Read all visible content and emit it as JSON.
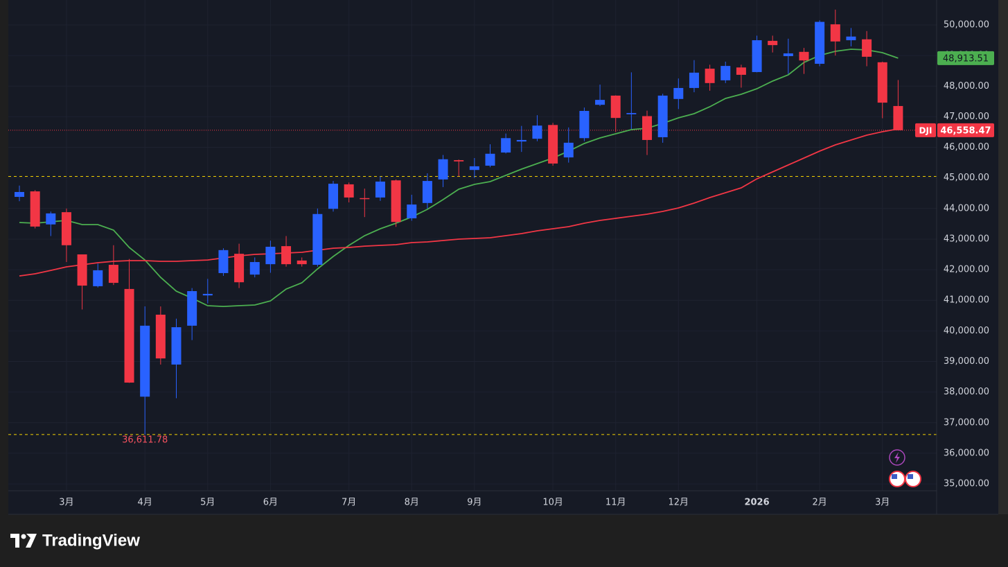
{
  "chart_data": {
    "type": "candlestick",
    "categories": [
      null,
      null,
      null,
      "3月",
      null,
      null,
      null,
      null,
      "4月",
      null,
      null,
      null,
      "5月",
      null,
      null,
      null,
      "6月",
      null,
      null,
      null,
      null,
      "7月",
      null,
      null,
      null,
      "8月",
      null,
      null,
      null,
      "9月",
      null,
      null,
      null,
      null,
      "10月",
      null,
      null,
      null,
      "11月",
      null,
      null,
      null,
      "12月",
      null,
      null,
      null,
      null,
      "2026",
      null,
      null,
      null,
      "2月",
      null,
      null,
      null,
      "3月",
      null
    ],
    "series": [
      {
        "name": "DJI",
        "type": "candlestick",
        "up_color": "#2962ff",
        "down_color": "#f23645",
        "last_value_label": "46,558.47",
        "open": [
          44380,
          44560,
          43480,
          43880,
          42500,
          41460,
          42160,
          41370,
          37850,
          40530,
          38900,
          40170,
          41160,
          41890,
          42520,
          41840,
          42180,
          42770,
          42300,
          42160,
          43990,
          44790,
          44340,
          44360,
          44920,
          43680,
          44180,
          44950,
          45580,
          45260,
          45400,
          45830,
          46190,
          46280,
          46730,
          45670,
          46300,
          47390,
          47690,
          47080,
          47020,
          46330,
          47580,
          47940,
          48570,
          48190,
          48610,
          48460,
          49480,
          48980,
          49120,
          48730,
          50020,
          49500,
          49530,
          48780,
          47350
        ],
        "high": [
          44750,
          44600,
          43900,
          44000,
          42500,
          42200,
          42800,
          42350,
          40800,
          40800,
          40400,
          41400,
          41700,
          42700,
          42850,
          42400,
          42950,
          43100,
          42400,
          44000,
          44900,
          44850,
          44650,
          45050,
          44950,
          44450,
          45150,
          45750,
          45600,
          45650,
          46100,
          46450,
          46700,
          47050,
          46800,
          46650,
          47300,
          48050,
          47700,
          48450,
          47200,
          47750,
          48250,
          48850,
          48700,
          48800,
          48700,
          49650,
          49650,
          49550,
          49250,
          50150,
          50500,
          49900,
          49800,
          48800,
          48200
        ],
        "low": [
          44240,
          43350,
          43100,
          42250,
          40700,
          41420,
          41500,
          38300,
          36611.78,
          38900,
          37800,
          39700,
          40900,
          41800,
          41400,
          41750,
          41900,
          42100,
          42100,
          42100,
          43900,
          44200,
          43720,
          44250,
          43400,
          43600,
          44000,
          44700,
          45050,
          45000,
          45350,
          45800,
          45850,
          46200,
          45400,
          45500,
          46200,
          47350,
          46500,
          46600,
          45750,
          46150,
          47250,
          47800,
          47850,
          48100,
          47950,
          48450,
          49100,
          48400,
          48400,
          48650,
          49000,
          49300,
          48650,
          46950,
          46550
        ],
        "close": [
          44540,
          43410,
          43840,
          42800,
          41480,
          41980,
          41570,
          38310,
          40170,
          39100,
          40120,
          41300,
          41210,
          42640,
          41590,
          42250,
          42750,
          42180,
          42180,
          43820,
          44810,
          44360,
          44320,
          44880,
          43560,
          44130,
          44900,
          45610,
          45540,
          45380,
          45790,
          46300,
          46240,
          46710,
          45470,
          46150,
          47190,
          47550,
          46960,
          47120,
          46240,
          47690,
          47940,
          48440,
          48100,
          48660,
          48370,
          49500,
          49340,
          49070,
          48840,
          50100,
          49460,
          49620,
          48960,
          47460,
          46558.47
        ]
      },
      {
        "type": "line",
        "color": "#4caf50",
        "last_value_label": "48,913.51",
        "values": [
          43542,
          43519,
          43565,
          43610,
          43474,
          43474,
          43293,
          42726,
          42318,
          41751,
          41298,
          41072,
          40823,
          40800,
          40823,
          40846,
          40981,
          41367,
          41571,
          42024,
          42432,
          42794,
          43112,
          43338,
          43519,
          43723,
          43972,
          44290,
          44630,
          44788,
          44879,
          45083,
          45287,
          45468,
          45650,
          45876,
          46125,
          46306,
          46442,
          46578,
          46624,
          46782,
          46964,
          47100,
          47326,
          47598,
          47734,
          47915,
          48165,
          48368,
          48776,
          49003,
          49139,
          49207,
          49184,
          49094,
          48913.51
        ]
      },
      {
        "type": "line",
        "color": "#f23645",
        "values": [
          41797,
          41865,
          41978,
          42092,
          42160,
          42228,
          42273,
          42296,
          42296,
          42273,
          42273,
          42296,
          42318,
          42386,
          42454,
          42500,
          42522,
          42545,
          42568,
          42636,
          42703,
          42726,
          42771,
          42794,
          42817,
          42885,
          42908,
          42953,
          42998,
          43021,
          43044,
          43112,
          43180,
          43270,
          43338,
          43406,
          43519,
          43610,
          43678,
          43746,
          43814,
          43905,
          44018,
          44177,
          44358,
          44516,
          44675,
          44970,
          45196,
          45423,
          45649,
          45876,
          46080,
          46238,
          46397,
          46510,
          46601
        ]
      }
    ],
    "hlines": [
      45050,
      36611.78
    ],
    "hline_color": "#f5d300",
    "annotations": [
      {
        "label": "36,611.78",
        "value": 36611.78
      }
    ],
    "ylim": [
      34775,
      50815
    ],
    "yticks": [
      {
        "value": 35000,
        "label": "35,000.00"
      },
      {
        "value": 36000,
        "label": "36,000.00"
      },
      {
        "value": 37000,
        "label": "37,000.00"
      },
      {
        "value": 38000,
        "label": "38,000.00"
      },
      {
        "value": 39000,
        "label": "39,000.00"
      },
      {
        "value": 40000,
        "label": "40,000.00"
      },
      {
        "value": 41000,
        "label": "41,000.00"
      },
      {
        "value": 42000,
        "label": "42,000.00"
      },
      {
        "value": 43000,
        "label": "43,000.00"
      },
      {
        "value": 44000,
        "label": "44,000.00"
      },
      {
        "value": 45000,
        "label": "45,000.00"
      },
      {
        "value": 46000,
        "label": "46,000.00"
      },
      {
        "value": 47000,
        "label": "47,000.00"
      },
      {
        "value": 48000,
        "label": "48,000.00"
      },
      {
        "value": 49000,
        "label": "49,000.00"
      },
      {
        "value": 50000,
        "label": "50,000.00"
      }
    ],
    "grid": true
  },
  "brand": "TradingView"
}
